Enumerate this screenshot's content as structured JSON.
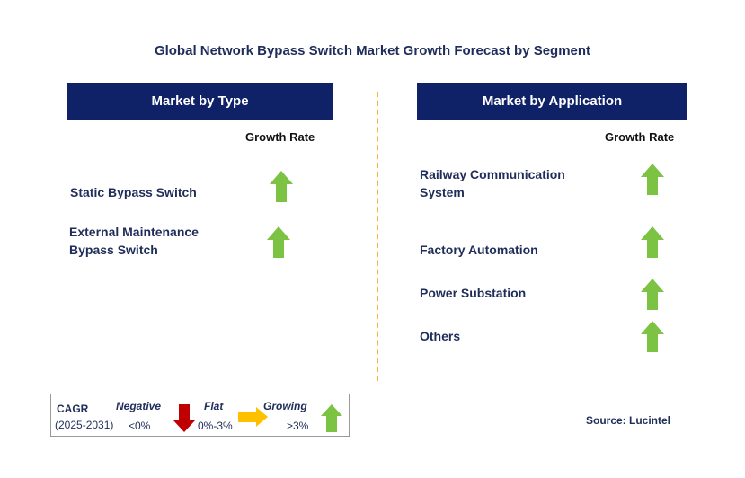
{
  "title": "Global Network Bypass Switch Market Growth Forecast by Segment",
  "left_panel": {
    "header": "Market by Type",
    "growth_rate_label": "Growth Rate",
    "items": [
      {
        "label": "Static Bypass Switch",
        "trend": "growing"
      },
      {
        "label": "External Maintenance Bypass Switch",
        "line1": "External Maintenance",
        "line2": "Bypass Switch",
        "trend": "growing"
      }
    ]
  },
  "right_panel": {
    "header": "Market by Application",
    "growth_rate_label": "Growth Rate",
    "items": [
      {
        "label": "Railway Communication System",
        "line1": "Railway Communication",
        "line2": "System",
        "trend": "growing"
      },
      {
        "label": "Factory Automation",
        "trend": "growing"
      },
      {
        "label": "Power Substation",
        "trend": "growing"
      },
      {
        "label": "Others",
        "trend": "growing"
      }
    ]
  },
  "legend": {
    "cagr_label": "CAGR",
    "period": "(2025-2031)",
    "negative_label": "Negative",
    "negative_range": "<0%",
    "flat_label": "Flat",
    "flat_range": "0%-3%",
    "growing_label": "Growing",
    "growing_range": ">3%"
  },
  "source": "Source: Lucintel",
  "colors": {
    "header_bg": "#0f2167",
    "growing_arrow": "#7cc243",
    "negative_arrow": "#c00000",
    "flat_arrow": "#ffc000",
    "divider": "#f5b43a"
  }
}
